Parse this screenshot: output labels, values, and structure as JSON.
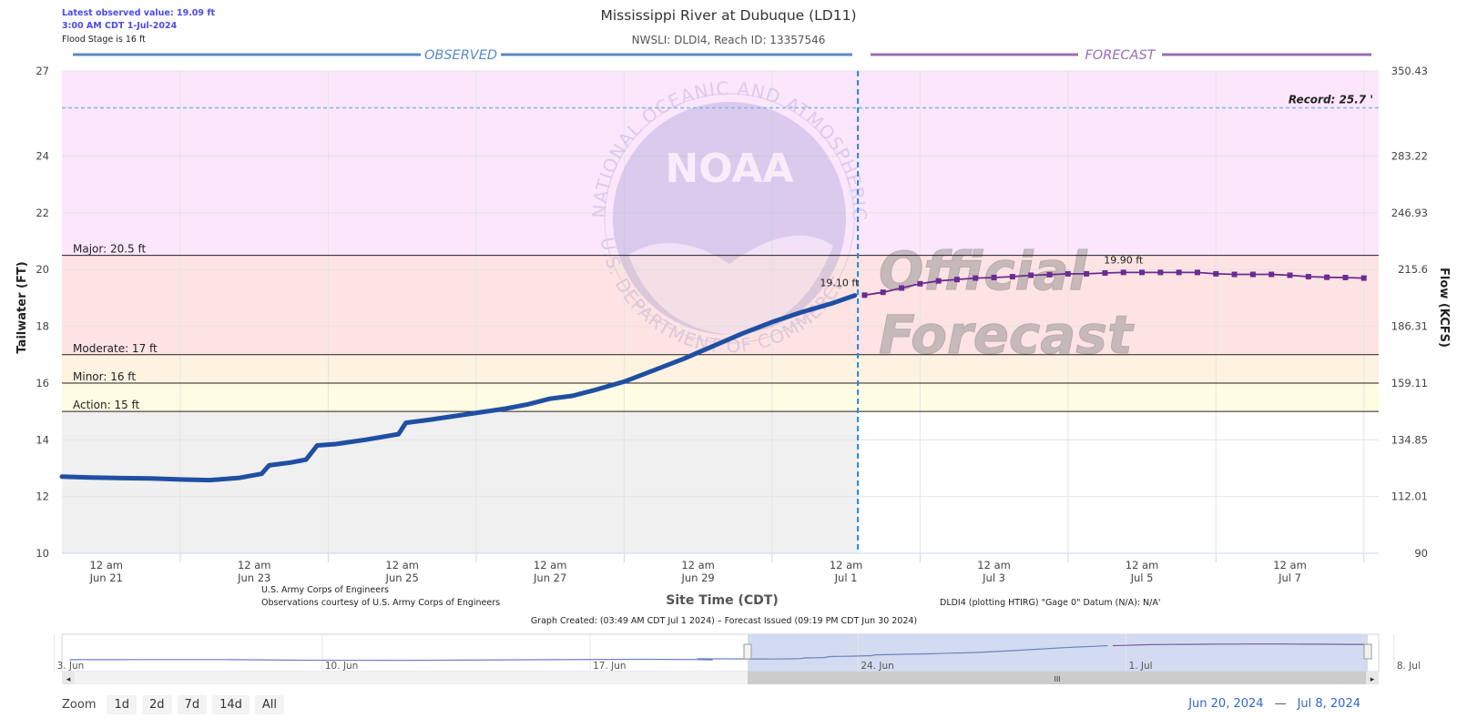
{
  "info": {
    "latest_value": "Latest observed value: 19.09 ft",
    "latest_time": "3:00 AM CDT 1-Jul-2024",
    "flood_stage": "Flood Stage is 16 ft"
  },
  "credits": {
    "usace": "U.S. Army Corps of Engineers",
    "obs": "Observations courtesy of U.S. Army Corps of Engineers",
    "datum": "DLDI4 (plotting HTIRG) \"Gage 0\" Datum (N/A): N/A'",
    "created": "Graph Created: (03:49 AM CDT Jul 1 2024) – Forecast Issued (09:19 PM CDT Jun 30 2024)"
  },
  "watermark": {
    "seal_top": "NATIONAL OCEANIC AND ATMOSPHERIC ADMINISTRATION",
    "seal_bottom": "U.S. DEPARTMENT OF COMMERCE",
    "seal_center": "NOAA",
    "official_1": "Official",
    "official_2": "Forecast"
  },
  "navigator": {
    "labels": [
      "3. Jun",
      "10. Jun",
      "17. Jun",
      "24. Jun",
      "1. Jul",
      "8. Jul"
    ],
    "scroll_grip": "III"
  },
  "zoom": {
    "label": "Zoom",
    "buttons": [
      "1d",
      "2d",
      "7d",
      "14d",
      "All"
    ]
  },
  "range": {
    "from": "Jun 20, 2024",
    "to": "Jul 8, 2024",
    "separator": "—"
  },
  "colors": {
    "observed": "#1f4fa3",
    "forecast": "#6a2c91",
    "record": "#7fb8e6",
    "major_zone": "#fbe6fb",
    "moderate_zone": "#fde3e3",
    "minor_zone": "#fef2e0",
    "action_zone": "#fefde3",
    "observed_bg": "#f0f0f0"
  },
  "chart_data": {
    "type": "line",
    "title": "Mississippi River at Dubuque (LD11)",
    "subtitle": "NWSLI: DLDI4, Reach ID: 13357546",
    "xlabel": "Site Time (CDT)",
    "ylabel": "Tailwater (FT)",
    "y2label": "Flow (KCFS)",
    "ylim": [
      10,
      27
    ],
    "y_ticks": [
      10,
      12,
      14,
      16,
      18,
      20,
      22,
      24,
      27
    ],
    "y2_ticks": [
      "90",
      "112.01",
      "134.85",
      "159.11",
      "186.31",
      "215.6",
      "246.93",
      "283.22",
      "350.43"
    ],
    "x_ticks": [
      {
        "t": 1,
        "l1": "12 am",
        "l2": "Jun 21"
      },
      {
        "t": 3,
        "l1": "12 am",
        "l2": "Jun 23"
      },
      {
        "t": 5,
        "l1": "12 am",
        "l2": "Jun 25"
      },
      {
        "t": 7,
        "l1": "12 am",
        "l2": "Jun 27"
      },
      {
        "t": 9,
        "l1": "12 am",
        "l2": "Jun 29"
      },
      {
        "t": 11,
        "l1": "12 am",
        "l2": "Jul 1"
      },
      {
        "t": 13,
        "l1": "12 am",
        "l2": "Jul 3"
      },
      {
        "t": 15,
        "l1": "12 am",
        "l2": "Jul 5"
      },
      {
        "t": 17,
        "l1": "12 am",
        "l2": "Jul 7"
      }
    ],
    "x_range": [
      0.4,
      18.2
    ],
    "section_observed": "OBSERVED",
    "section_forecast": "FORECAST",
    "now_t": 11.16,
    "thresholds": [
      {
        "name": "Major",
        "label": "Major: 20.5 ft",
        "value": 20.5
      },
      {
        "name": "Moderate",
        "label": "Moderate: 17 ft",
        "value": 17
      },
      {
        "name": "Minor",
        "label": "Minor: 16 ft",
        "value": 16
      },
      {
        "name": "Action",
        "label": "Action: 15 ft",
        "value": 15
      }
    ],
    "record": {
      "label": "Record: 25.7 '",
      "value": 25.7
    },
    "observed": {
      "name": "Observed",
      "points": [
        [
          0.4,
          12.7
        ],
        [
          0.8,
          12.67
        ],
        [
          1.2,
          12.65
        ],
        [
          1.6,
          12.64
        ],
        [
          2.0,
          12.6
        ],
        [
          2.4,
          12.58
        ],
        [
          2.8,
          12.66
        ],
        [
          3.1,
          12.8
        ],
        [
          3.2,
          13.1
        ],
        [
          3.5,
          13.2
        ],
        [
          3.7,
          13.3
        ],
        [
          3.85,
          13.8
        ],
        [
          4.1,
          13.85
        ],
        [
          4.5,
          14.0
        ],
        [
          4.95,
          14.2
        ],
        [
          5.05,
          14.6
        ],
        [
          5.35,
          14.7
        ],
        [
          6.4,
          15.1
        ],
        [
          6.7,
          15.25
        ],
        [
          7.0,
          15.45
        ],
        [
          7.3,
          15.55
        ],
        [
          7.6,
          15.75
        ],
        [
          8.0,
          16.05
        ],
        [
          8.4,
          16.45
        ],
        [
          8.8,
          16.85
        ],
        [
          9.2,
          17.3
        ],
        [
          9.6,
          17.75
        ],
        [
          10.0,
          18.15
        ],
        [
          10.4,
          18.5
        ],
        [
          10.8,
          18.8
        ],
        [
          11.12,
          19.09
        ]
      ]
    },
    "forecast": {
      "name": "Forecast",
      "start_label": "19.10 ft",
      "peak_label": "19.90 ft",
      "points": [
        [
          11.25,
          19.1
        ],
        [
          11.5,
          19.2
        ],
        [
          11.75,
          19.35
        ],
        [
          12.0,
          19.5
        ],
        [
          12.25,
          19.6
        ],
        [
          12.5,
          19.65
        ],
        [
          12.75,
          19.7
        ],
        [
          13.0,
          19.72
        ],
        [
          13.25,
          19.75
        ],
        [
          13.5,
          19.8
        ],
        [
          13.75,
          19.82
        ],
        [
          14.0,
          19.85
        ],
        [
          14.25,
          19.85
        ],
        [
          14.5,
          19.88
        ],
        [
          14.75,
          19.9
        ],
        [
          15.0,
          19.9
        ],
        [
          15.25,
          19.9
        ],
        [
          15.5,
          19.9
        ],
        [
          15.75,
          19.9
        ],
        [
          16.0,
          19.85
        ],
        [
          16.25,
          19.83
        ],
        [
          16.5,
          19.83
        ],
        [
          16.75,
          19.83
        ],
        [
          17.0,
          19.8
        ],
        [
          17.25,
          19.75
        ],
        [
          17.5,
          19.73
        ],
        [
          17.75,
          19.72
        ],
        [
          18.0,
          19.7
        ]
      ]
    }
  }
}
